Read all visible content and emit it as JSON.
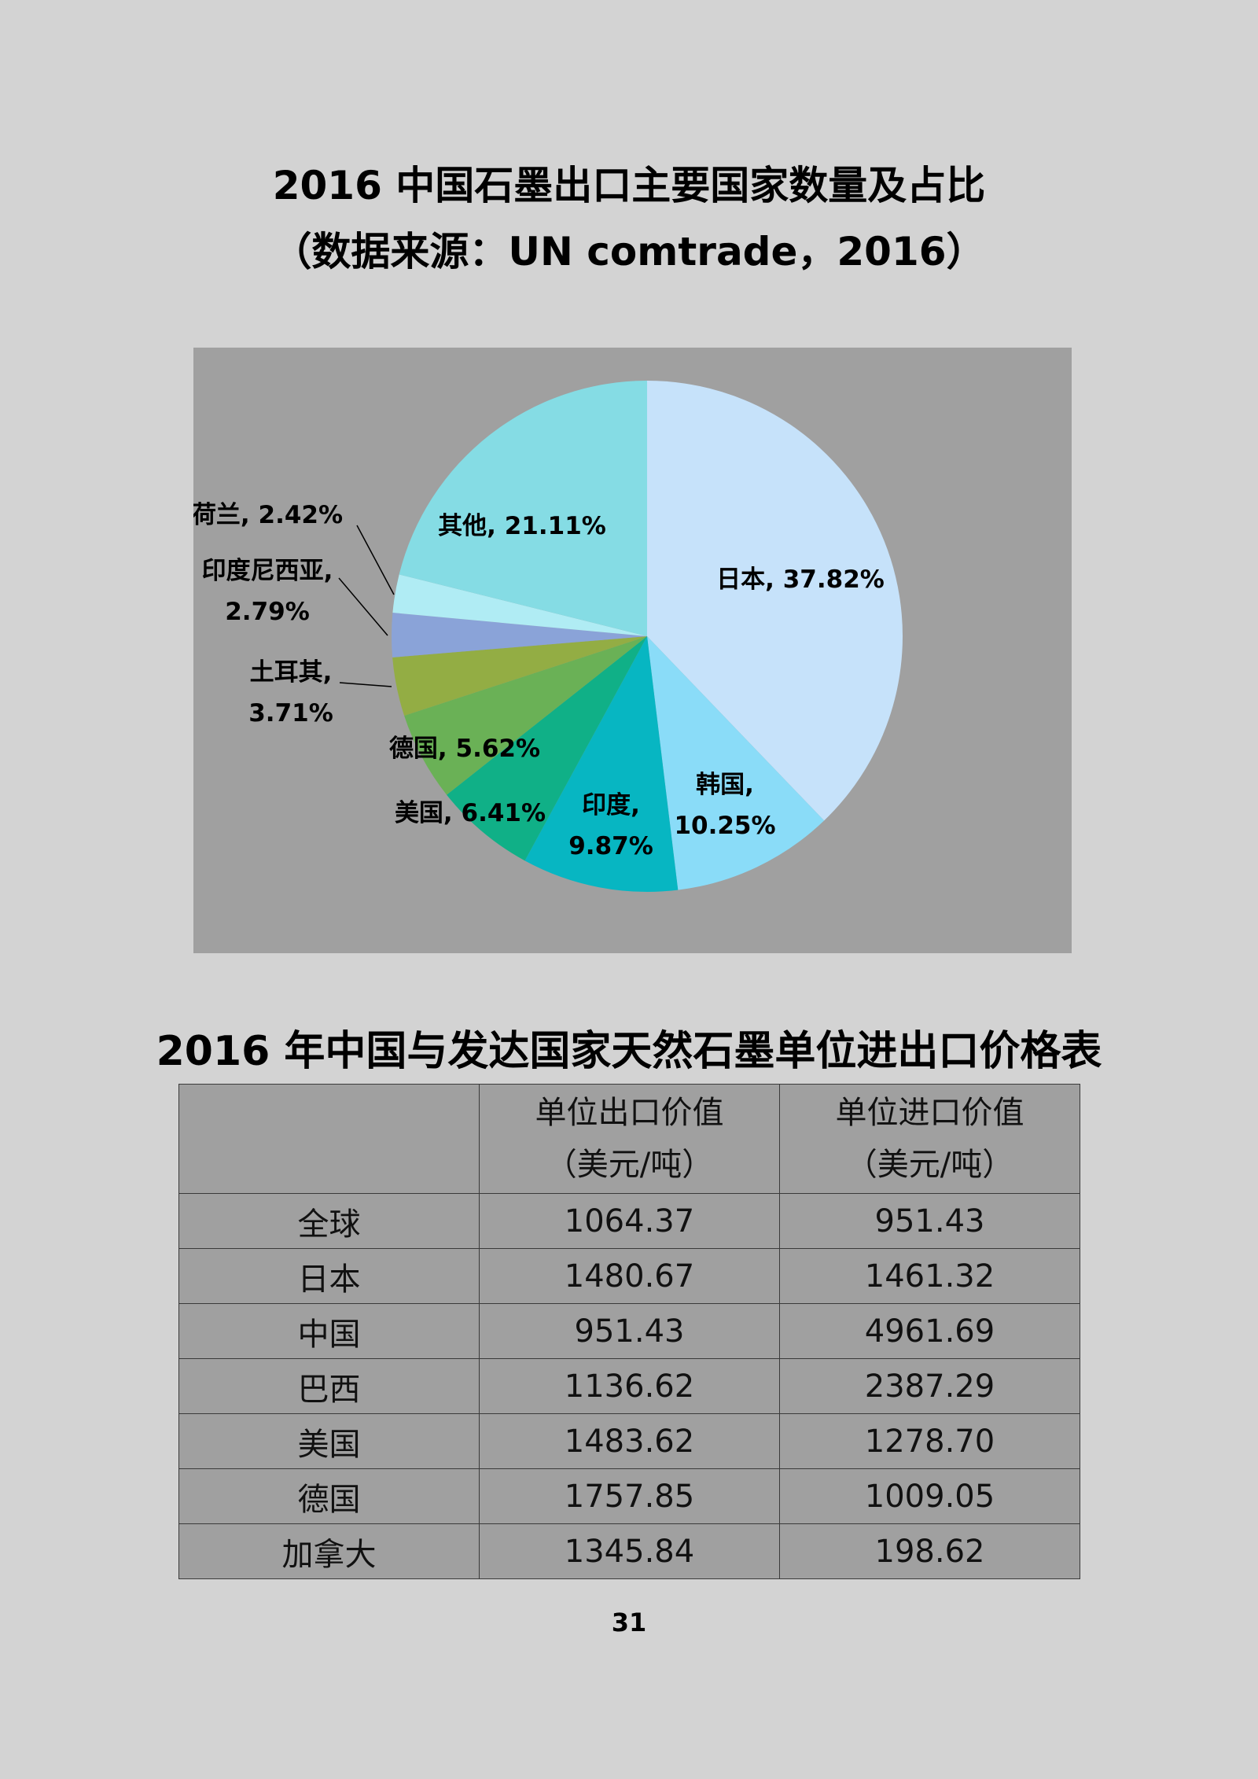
{
  "chart_title": "2016 中国石墨出口主要国家数量及占比",
  "chart_subtitle": "（数据来源：UN comtrade，2016）",
  "chart_data": {
    "type": "pie",
    "title": "2016 中国石墨出口主要国家数量及占比",
    "subtitle": "（数据来源：UN comtrade，2016）",
    "slices": [
      {
        "name": "日本",
        "value": 37.82,
        "label": "日本, 37.82%",
        "color": "#c6e2fa"
      },
      {
        "name": "韩国",
        "value": 10.25,
        "label": "韩国,\n10.25%",
        "color": "#8adcf8"
      },
      {
        "name": "印度",
        "value": 9.87,
        "label": "印度,\n9.87%",
        "color": "#07b6c2"
      },
      {
        "name": "美国",
        "value": 6.41,
        "label": "美国, 6.41%",
        "color": "#10b087"
      },
      {
        "name": "德国",
        "value": 5.62,
        "label": "德国, 5.62%",
        "color": "#6ab156"
      },
      {
        "name": "土耳其",
        "value": 3.71,
        "label": "土耳其,\n3.71%",
        "color": "#93ad44"
      },
      {
        "name": "印度尼西亚",
        "value": 2.79,
        "label": "印度尼西亚,\n2.79%",
        "color": "#8aa3d8"
      },
      {
        "name": "荷兰",
        "value": 2.42,
        "label": "荷兰, 2.42%",
        "color": "#b0ecf4"
      },
      {
        "name": "其他",
        "value": 21.11,
        "label": "其他, 21.11%",
        "color": "#85dce4"
      }
    ]
  },
  "table": {
    "title": "2016 年中国与发达国家天然石墨单位进出口价格表",
    "header": {
      "blank": "",
      "export_line1": "单位出口价值",
      "export_line2": "（美元/吨）",
      "import_line1": "单位进口价值",
      "import_line2": "（美元/吨）"
    },
    "rows": [
      {
        "name": "全球",
        "export": "1064.37",
        "import": "951.43"
      },
      {
        "name": "日本",
        "export": "1480.67",
        "import": "1461.32"
      },
      {
        "name": "中国",
        "export": "951.43",
        "import": "4961.69"
      },
      {
        "name": "巴西",
        "export": "1136.62",
        "import": "2387.29"
      },
      {
        "name": "美国",
        "export": "1483.62",
        "import": "1278.70"
      },
      {
        "name": "德国",
        "export": "1757.85",
        "import": "1009.05"
      },
      {
        "name": "加拿大",
        "export": "1345.84",
        "import": "198.62"
      }
    ]
  },
  "page_number": "31"
}
